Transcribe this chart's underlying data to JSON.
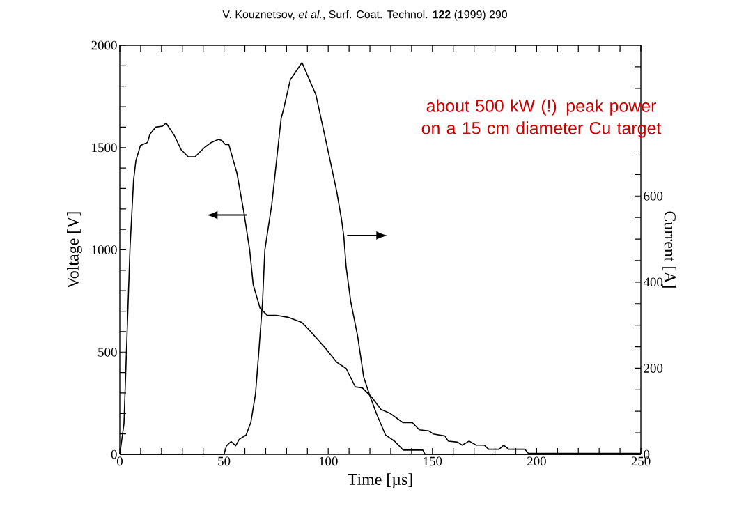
{
  "chart_data": {
    "type": "line",
    "title": "V. Kouznetsov, *et al.*, Surf. Coat. Technol. **122** (1999) 290",
    "xlabel": "Time [µs]",
    "ylabel": "Voltage [V]",
    "y2label": "Current [A]",
    "annotations": [
      "about 500 kW (!) peak power on a 15 cm diameter Cu target"
    ],
    "xlim": [
      0,
      250
    ],
    "ylim": [
      0,
      2000
    ],
    "y2lim": [
      0,
      950
    ],
    "xticks": [
      0,
      {
        "value": 10,
        "label": null
      },
      {
        "value": 20,
        "label": null
      },
      {
        "value": 30,
        "label": null
      },
      {
        "value": 40,
        "label": null
      },
      50,
      {
        "value": 60,
        "label": null
      },
      {
        "value": 70,
        "label": null
      },
      {
        "value": 80,
        "label": null
      },
      {
        "value": 90,
        "label": null
      },
      100,
      {
        "value": 110,
        "label": null
      },
      {
        "value": 120,
        "label": null
      },
      {
        "value": 130,
        "label": null
      },
      {
        "value": 140,
        "label": null
      },
      150,
      {
        "value": 160,
        "label": null
      },
      {
        "value": 170,
        "label": null
      },
      {
        "value": 180,
        "label": null
      },
      {
        "value": 190,
        "label": null
      },
      200,
      {
        "value": 210,
        "label": null
      },
      {
        "value": 220,
        "label": null
      },
      {
        "value": 230,
        "label": null
      },
      {
        "value": 240,
        "label": null
      },
      250
    ],
    "yticks": [
      0,
      {
        "value": 100,
        "label": null
      },
      {
        "value": 200,
        "label": null
      },
      {
        "value": 300,
        "label": null
      },
      {
        "value": 400,
        "label": null
      },
      500,
      {
        "value": 600,
        "label": null
      },
      {
        "value": 700,
        "label": null
      },
      {
        "value": 800,
        "label": null
      },
      {
        "value": 900,
        "label": null
      },
      1000,
      {
        "value": 1100,
        "label": null
      },
      {
        "value": 1200,
        "label": null
      },
      {
        "value": 1300,
        "label": null
      },
      {
        "value": 1400,
        "label": null
      },
      1500,
      {
        "value": 1600,
        "label": null
      },
      {
        "value": 1700,
        "label": null
      },
      {
        "value": 1800,
        "label": null
      },
      {
        "value": 1900,
        "label": null
      },
      2000
    ],
    "y2ticks": [
      0,
      {
        "value": 50,
        "label": null
      },
      {
        "value": 100,
        "label": null
      },
      {
        "value": 150,
        "label": null
      },
      200,
      {
        "value": 250,
        "label": null
      },
      {
        "value": 300,
        "label": null
      },
      {
        "value": 350,
        "label": null
      },
      400,
      {
        "value": 450,
        "label": null
      },
      {
        "value": 500,
        "label": null
      },
      {
        "value": 550,
        "label": null
      },
      600,
      {
        "value": 650,
        "label": null
      },
      {
        "value": 700,
        "label": null
      },
      {
        "value": 850,
        "label": null
      },
      {
        "value": 900,
        "label": null
      }
    ],
    "line_style": "solid",
    "marker": "none",
    "series": [
      {
        "color": "#000000",
        "axis": "y",
        "x": [
          0,
          2,
          4.9,
          6.6,
          7.7,
          9.9,
          13.3,
          14.4,
          17.2,
          20.5,
          22.2,
          26.1,
          29.4,
          32.8,
          36.1,
          40.6,
          43.9,
          47.3,
          48.9,
          50.6,
          52.3,
          56.2,
          59.5,
          62.3,
          64,
          67.3,
          70.7,
          75.1,
          80.7,
          87.4,
          90.7,
          98.6,
          104.1,
          108.6,
          113,
          116.4,
          120.8,
          125.3,
          129.8,
          135.9,
          140.4,
          143.7,
          148.2,
          150.4,
          156,
          157.6,
          162.1,
          164.3,
          167.6,
          171,
          174.9,
          177,
          182,
          184.2,
          186.6,
          194.4,
          196,
          250
        ],
        "values": [
          0,
          150,
          1010,
          1340,
          1435,
          1510,
          1525,
          1565,
          1600,
          1605,
          1620,
          1560,
          1490,
          1455,
          1455,
          1500,
          1525,
          1540,
          1535,
          1515,
          1515,
          1375,
          1185,
          1000,
          830,
          715,
          680,
          680,
          670,
          645,
          610,
          520,
          450,
          420,
          330,
          325,
          280,
          220,
          200,
          155,
          155,
          120,
          115,
          100,
          90,
          65,
          60,
          45,
          65,
          45,
          45,
          25,
          25,
          45,
          25,
          25,
          5,
          5
        ]
      },
      {
        "color": "#000000",
        "axis": "y2",
        "x": [
          0,
          50,
          51.2,
          53.4,
          55.6,
          57.3,
          60.6,
          62.9,
          65.1,
          66.8,
          68.5,
          69.6,
          72.9,
          77.4,
          78.5,
          81.8,
          87.4,
          94.1,
          99.7,
          104.1,
          106.4,
          107.5,
          108.6,
          110.8,
          114.1,
          117,
          119.7,
          123.1,
          127.5,
          132,
          136,
          145.4,
          146.5,
          250
        ],
        "values": [
          0,
          0,
          20,
          30,
          20,
          35,
          45,
          75,
          140,
          245,
          355,
          475,
          580,
          780,
          800,
          870,
          910,
          835,
          710,
          610,
          545,
          505,
          435,
          355,
          275,
          180,
          140,
          95,
          45,
          30,
          10,
          10,
          0,
          0
        ]
      }
    ]
  }
}
